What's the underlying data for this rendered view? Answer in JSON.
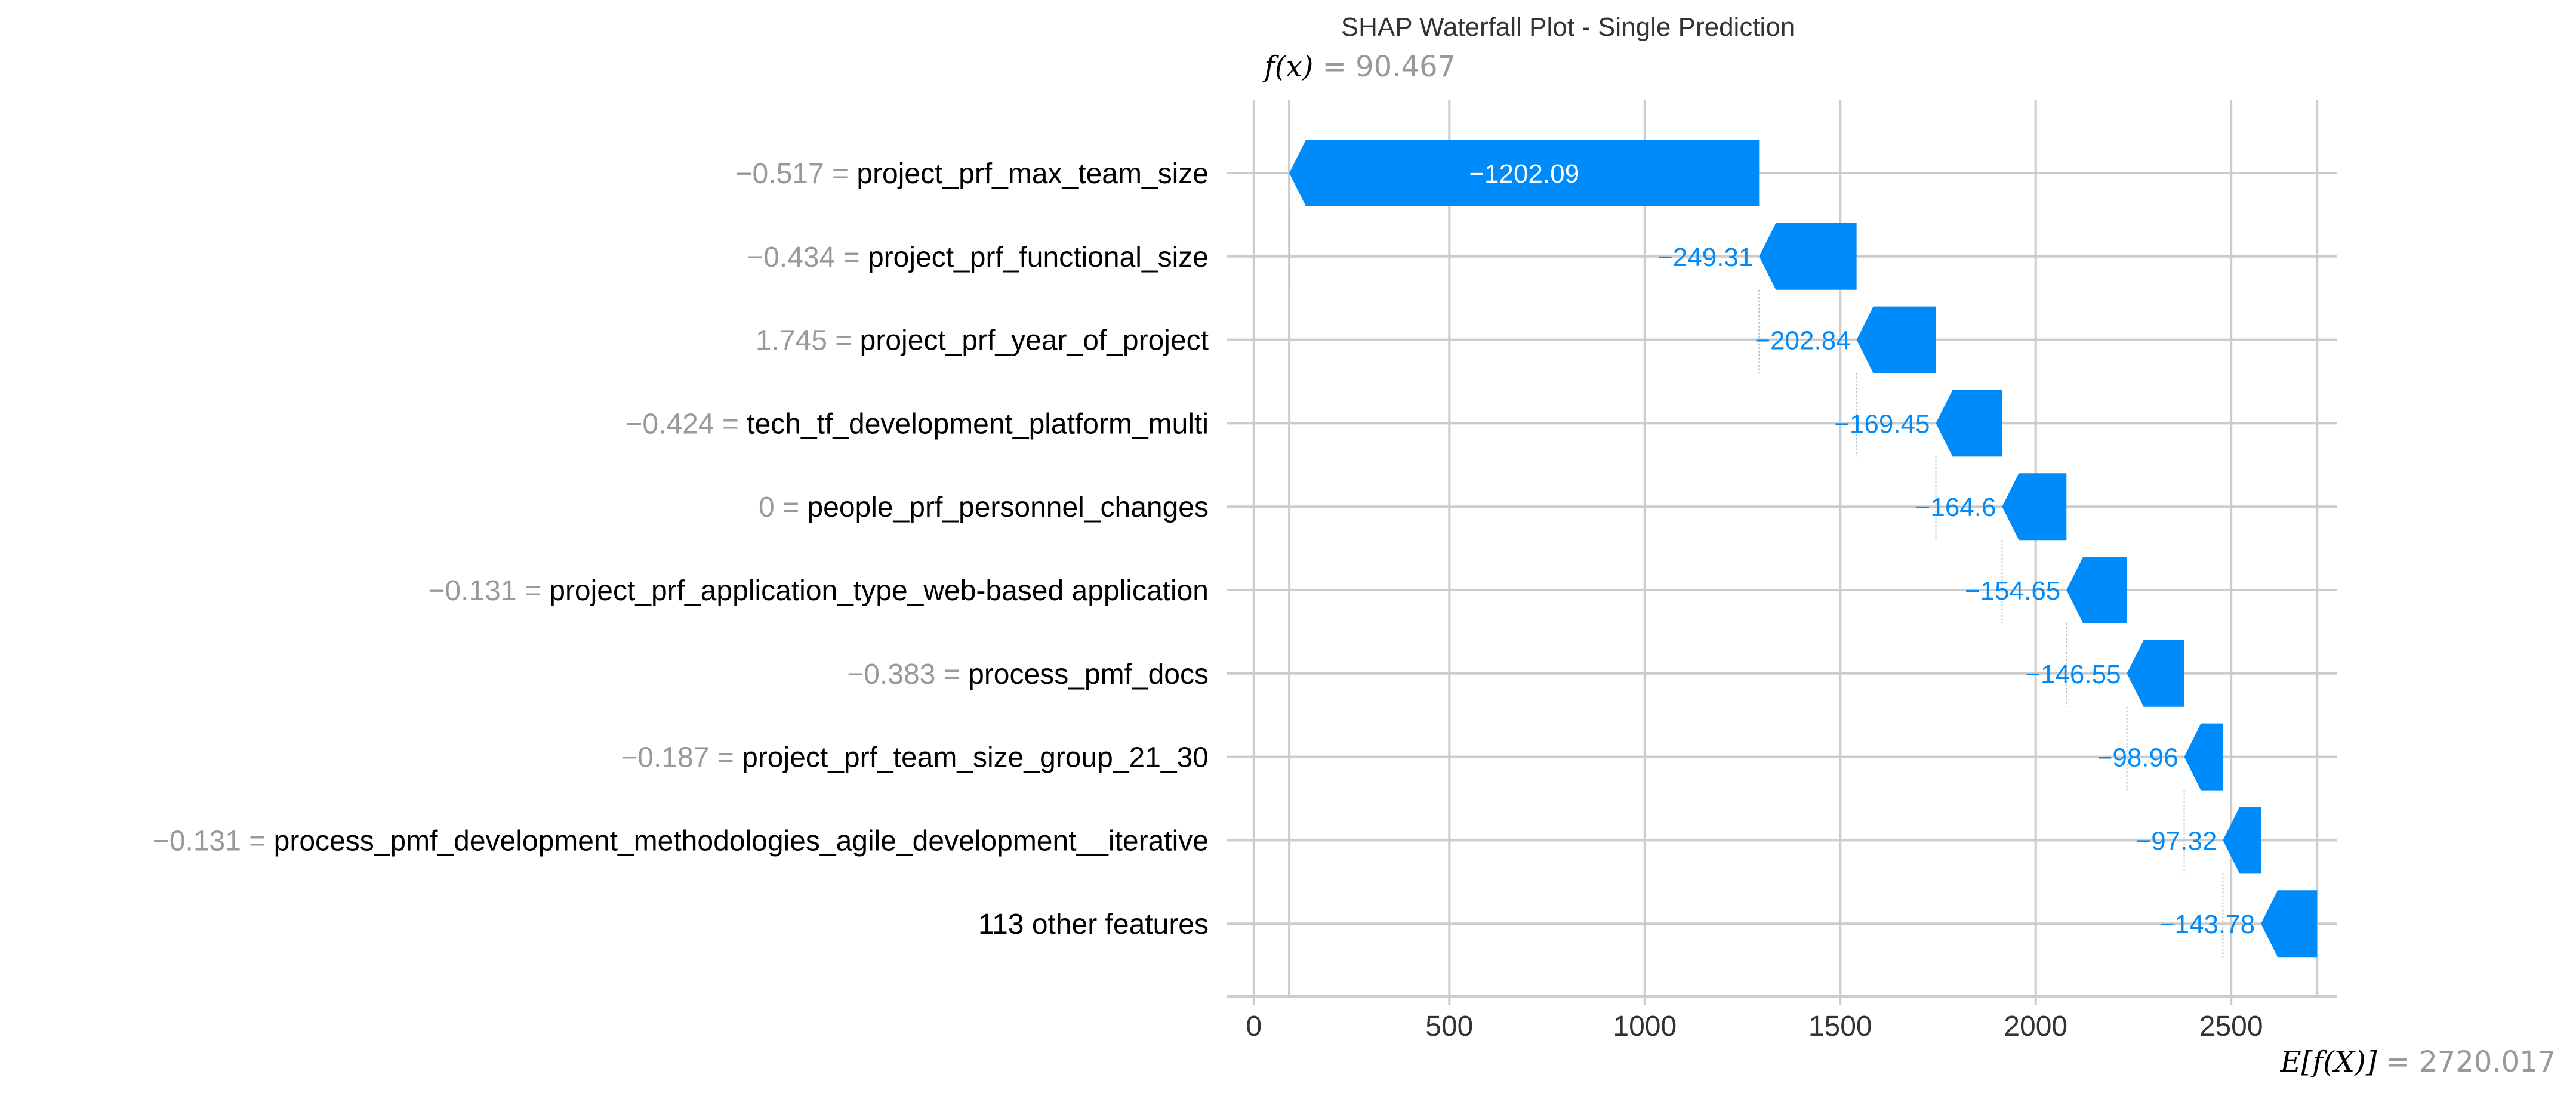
{
  "chart_data": {
    "type": "waterfall",
    "title": "SHAP Waterfall Plot - Single Prediction",
    "fx_label": "f(x)",
    "fx_value": "90.467",
    "base_label": "E[f(X)]",
    "base_value": "2720.017",
    "base_numeric": 2720.017,
    "xlim": [
      -70,
      2770
    ],
    "x_ticks": [
      0,
      500,
      1000,
      1500,
      2000,
      2500
    ],
    "grid": true,
    "colors": {
      "negative": "#008bfb",
      "feature_value": "#999999",
      "feature_name": "#000000",
      "axis": "#cccccc",
      "label_inside": "#ffffff"
    },
    "features": [
      {
        "value": "−0.517",
        "name": "project_prf_max_team_size",
        "contribution": -1202.09,
        "label": "−1202.09"
      },
      {
        "value": "−0.434",
        "name": "project_prf_functional_size",
        "contribution": -249.31,
        "label": "−249.31"
      },
      {
        "value": "1.745",
        "name": "project_prf_year_of_project",
        "contribution": -202.84,
        "label": "−202.84"
      },
      {
        "value": "−0.424",
        "name": "tech_tf_development_platform_multi",
        "contribution": -169.45,
        "label": "−169.45"
      },
      {
        "value": "0",
        "name": "people_prf_personnel_changes",
        "contribution": -164.6,
        "label": "−164.6"
      },
      {
        "value": "−0.131",
        "name": "project_prf_application_type_web-based application",
        "contribution": -154.65,
        "label": "−154.65"
      },
      {
        "value": "−0.383",
        "name": "process_pmf_docs",
        "contribution": -146.55,
        "label": "−146.55"
      },
      {
        "value": "−0.187",
        "name": "project_prf_team_size_group_21_30",
        "contribution": -98.96,
        "label": "−98.96"
      },
      {
        "value": "−0.131",
        "name": "process_pmf_development_methodologies_agile_development__iterative",
        "contribution": -97.32,
        "label": "−97.32"
      },
      {
        "value": "",
        "name": "113 other features",
        "contribution": -143.78,
        "label": "−143.78"
      }
    ]
  }
}
